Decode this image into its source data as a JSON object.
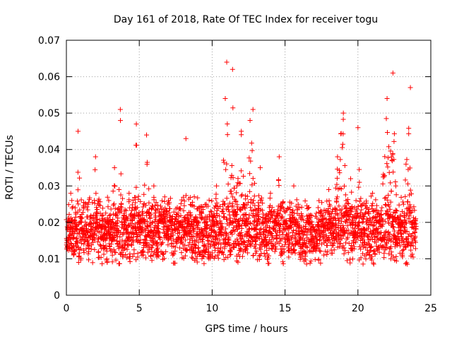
{
  "chart_data": {
    "type": "scatter",
    "title": "Day 161 of 2018, Rate Of TEC Index for receiver togu",
    "xlabel": "GPS time / hours",
    "ylabel": "ROTI / TECUs",
    "xlim": [
      0,
      25
    ],
    "ylim": [
      0,
      0.07
    ],
    "xticks": [
      0,
      5,
      10,
      15,
      20,
      25
    ],
    "xtick_labels": [
      "0",
      "5",
      "10",
      "15",
      "20",
      "25"
    ],
    "yticks": [
      0,
      0.01,
      0.02,
      0.03,
      0.04,
      0.05,
      0.06,
      0.07
    ],
    "ytick_labels": [
      "0",
      "0.01",
      "0.02",
      "0.03",
      "0.04",
      "0.05",
      "0.06",
      "0.07"
    ],
    "grid": true,
    "marker": "+",
    "marker_color": "#ff0000",
    "x_range_of_data": [
      0,
      24
    ],
    "series": [
      {
        "name": "ROTI",
        "x": [
          0.1,
          0.3,
          0.5,
          0.7,
          0.8,
          1.0,
          1.2,
          1.5,
          1.8,
          2.0,
          2.2,
          2.5,
          2.8,
          3.0,
          3.3,
          3.5,
          3.7,
          3.8,
          4.0,
          4.3,
          4.6,
          4.8,
          5.0,
          5.2,
          5.5,
          5.8,
          6.0,
          6.3,
          6.6,
          7.0,
          7.3,
          7.6,
          8.0,
          8.2,
          8.3,
          8.6,
          9.0,
          9.3,
          9.6,
          10.0,
          10.3,
          10.6,
          10.9,
          11.0,
          11.2,
          11.4,
          11.7,
          12.0,
          12.3,
          12.6,
          12.8,
          13.0,
          13.3,
          13.6,
          14.0,
          14.3,
          14.6,
          15.0,
          15.3,
          15.6,
          16.0,
          16.3,
          16.6,
          17.0,
          17.3,
          17.6,
          18.0,
          18.3,
          18.6,
          19.0,
          19.2,
          19.5,
          19.8,
          20.0,
          20.3,
          20.6,
          21.0,
          21.3,
          21.6,
          22.0,
          22.3,
          22.4,
          22.6,
          23.0,
          23.3,
          23.6,
          23.7
        ],
        "y": [
          0.015,
          0.028,
          0.012,
          0.018,
          0.045,
          0.02,
          0.014,
          0.025,
          0.016,
          0.038,
          0.012,
          0.022,
          0.009,
          0.018,
          0.035,
          0.014,
          0.051,
          0.02,
          0.013,
          0.028,
          0.016,
          0.047,
          0.022,
          0.018,
          0.044,
          0.015,
          0.03,
          0.012,
          0.02,
          0.026,
          0.011,
          0.018,
          0.014,
          0.043,
          0.022,
          0.013,
          0.017,
          0.01,
          0.025,
          0.019,
          0.03,
          0.014,
          0.054,
          0.064,
          0.02,
          0.062,
          0.03,
          0.045,
          0.022,
          0.048,
          0.051,
          0.018,
          0.035,
          0.015,
          0.028,
          0.012,
          0.038,
          0.02,
          0.014,
          0.03,
          0.016,
          0.01,
          0.024,
          0.018,
          0.013,
          0.022,
          0.029,
          0.017,
          0.038,
          0.05,
          0.024,
          0.032,
          0.016,
          0.046,
          0.02,
          0.014,
          0.028,
          0.018,
          0.022,
          0.054,
          0.038,
          0.061,
          0.03,
          0.016,
          0.036,
          0.057,
          0.02
        ]
      }
    ]
  }
}
